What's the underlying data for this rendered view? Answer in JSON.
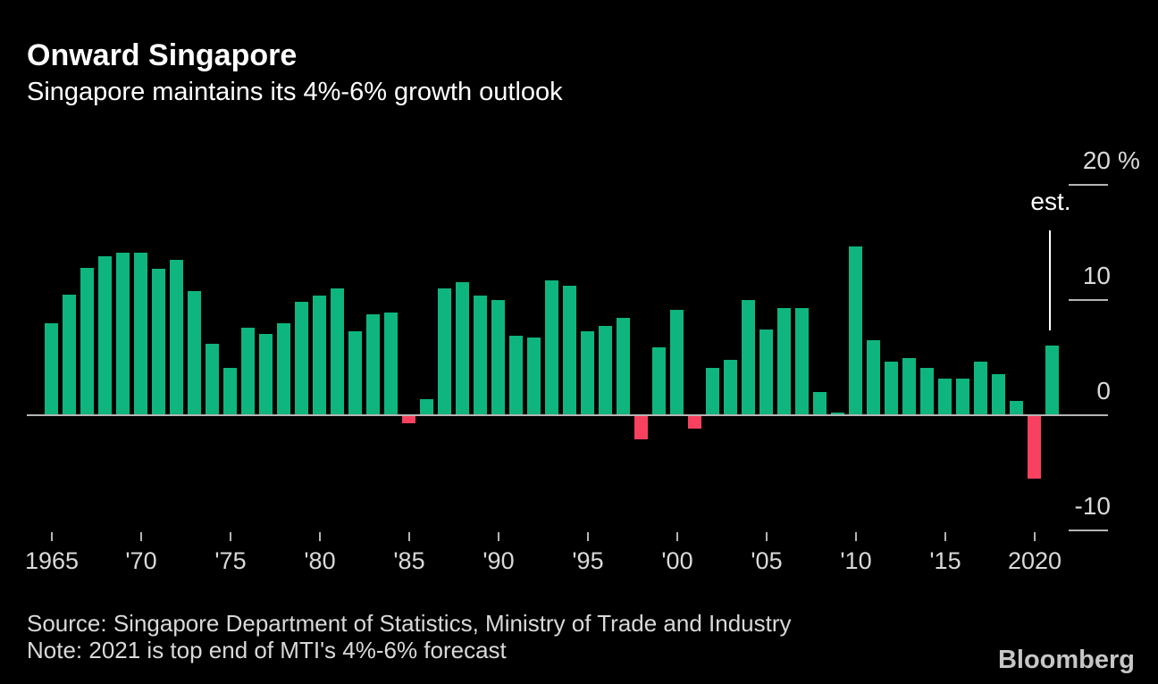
{
  "header": {
    "title": "Onward Singapore",
    "subtitle": "Singapore maintains its 4%-6% growth outlook"
  },
  "chart_data": {
    "type": "bar",
    "title": "Onward Singapore",
    "subtitle": "Singapore maintains its 4%-6% growth outlook",
    "xlabel": "",
    "ylabel": "%",
    "ylim": [
      -10,
      20
    ],
    "grid": false,
    "legend": "none",
    "x": [
      1965,
      1966,
      1967,
      1968,
      1969,
      1970,
      1971,
      1972,
      1973,
      1974,
      1975,
      1976,
      1977,
      1978,
      1979,
      1980,
      1981,
      1982,
      1983,
      1984,
      1985,
      1986,
      1987,
      1988,
      1989,
      1990,
      1991,
      1992,
      1993,
      1994,
      1995,
      1996,
      1997,
      1998,
      1999,
      2000,
      2001,
      2002,
      2003,
      2004,
      2005,
      2006,
      2007,
      2008,
      2009,
      2010,
      2011,
      2012,
      2013,
      2014,
      2015,
      2016,
      2017,
      2018,
      2019,
      2020,
      2021
    ],
    "values": [
      7.9,
      10.4,
      12.7,
      13.7,
      14,
      14,
      12.6,
      13.4,
      10.7,
      6.1,
      4,
      7.5,
      7,
      7.9,
      9.8,
      10.3,
      10.9,
      7.2,
      8.7,
      8.8,
      -0.6,
      1.3,
      10.9,
      11.5,
      10.3,
      9.9,
      6.8,
      6.7,
      11.6,
      11.2,
      7.2,
      7.7,
      8.4,
      -2,
      5.8,
      9.1,
      -1.1,
      4,
      4.7,
      9.9,
      7.4,
      9.2,
      9.2,
      1.9,
      0.1,
      14.6,
      6.4,
      4.6,
      4.9,
      4,
      3.1,
      3.1,
      4.6,
      3.5,
      1.2,
      -5.4,
      6
    ],
    "x_axis": {
      "ticks": [
        {
          "year": 1965,
          "label": "1965"
        },
        {
          "year": 1970,
          "label": "'70"
        },
        {
          "year": 1975,
          "label": "'75"
        },
        {
          "year": 1980,
          "label": "'80"
        },
        {
          "year": 1985,
          "label": "'85"
        },
        {
          "year": 1990,
          "label": "'90"
        },
        {
          "year": 1995,
          "label": "'95"
        },
        {
          "year": 2000,
          "label": "'00"
        },
        {
          "year": 2005,
          "label": "'05"
        },
        {
          "year": 2010,
          "label": "'10"
        },
        {
          "year": 2015,
          "label": "'15"
        },
        {
          "year": 2020,
          "label": "2020"
        }
      ]
    },
    "y_axis": {
      "unit": "%",
      "ticks": [
        {
          "value": 20,
          "label": "20",
          "unit": "%"
        },
        {
          "value": 10,
          "label": "10"
        },
        {
          "value": 0,
          "label": "0"
        },
        {
          "value": -10,
          "label": "-10"
        }
      ]
    },
    "annotation": {
      "label": "est.",
      "year": 2021
    },
    "colors": {
      "positive": "#0fb57e",
      "negative": "#f8415f",
      "axis": "#b5b5b5"
    }
  },
  "footer": {
    "source": "Source: Singapore Department of Statistics, Ministry of Trade and Industry",
    "note": "Note: 2021 is top end of MTI's 4%-6% forecast",
    "brand": "Bloomberg"
  }
}
